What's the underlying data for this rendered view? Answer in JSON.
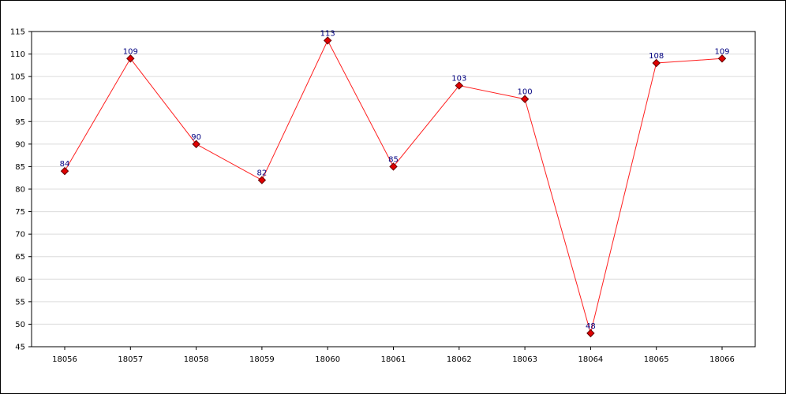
{
  "colors": {
    "line": "#ff2020",
    "marker_fill": "#e00000",
    "marker_stroke": "#600000",
    "label": "#000080",
    "grid": "#dcdcdc",
    "axis": "#000000"
  },
  "chart_data": {
    "type": "line",
    "title": "",
    "xlabel": "",
    "ylabel": "",
    "categories": [
      "18056",
      "18057",
      "18058",
      "18059",
      "18060",
      "18061",
      "18062",
      "18063",
      "18064",
      "18065",
      "18066"
    ],
    "series": [
      {
        "values": [
          84,
          109,
          90,
          82,
          113,
          85,
          103,
          100,
          48,
          108,
          109
        ]
      }
    ],
    "data_labels": [
      "84",
      "109",
      "90",
      "82",
      "113",
      "85",
      "103",
      "100",
      "48",
      "108",
      "109"
    ],
    "ylim": [
      45,
      115
    ],
    "yticks": [
      "45",
      "50",
      "55",
      "60",
      "65",
      "70",
      "75",
      "80",
      "85",
      "90",
      "95",
      "100",
      "105",
      "110",
      "115"
    ],
    "grid": true,
    "legend": "none"
  }
}
